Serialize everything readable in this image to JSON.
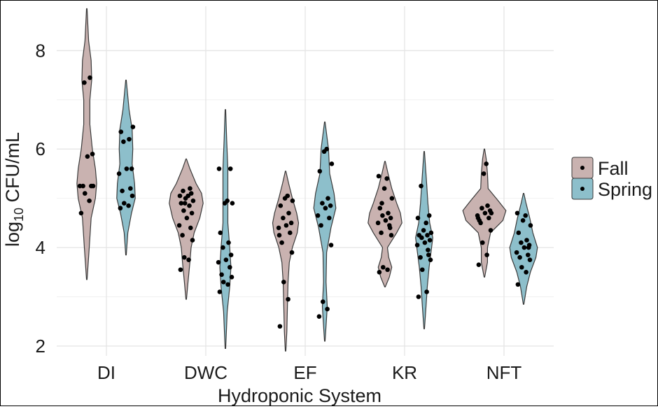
{
  "chart_data": {
    "type": "violin",
    "title": "",
    "xlabel": "Hydroponic System",
    "ylabel_main": "log",
    "ylabel_sub": "10",
    "ylabel_rest": " CFU/mL",
    "ylim": [
      1.8,
      8.9
    ],
    "yticks": [
      2,
      4,
      6,
      8
    ],
    "grid": true,
    "legend_position": "right",
    "categories": [
      "DI",
      "DWC",
      "EF",
      "KR",
      "NFT"
    ],
    "series": [
      {
        "name": "Fall",
        "color": "#c9b2b0",
        "groups": [
          {
            "min": 3.35,
            "max": 8.85,
            "density": [
              [
                3.35,
                0.01
              ],
              [
                4.0,
                0.08
              ],
              [
                4.6,
                0.14
              ],
              [
                5.0,
                0.28
              ],
              [
                5.3,
                0.32
              ],
              [
                5.6,
                0.28
              ],
              [
                6.0,
                0.18
              ],
              [
                6.5,
                0.1
              ],
              [
                7.0,
                0.1
              ],
              [
                7.4,
                0.16
              ],
              [
                7.8,
                0.14
              ],
              [
                8.2,
                0.06
              ],
              [
                8.85,
                0.01
              ]
            ],
            "points": [
              4.7,
              4.95,
              5.1,
              5.25,
              5.25,
              5.25,
              5.25,
              5.85,
              5.9,
              7.35,
              7.45
            ]
          },
          {
            "min": 2.95,
            "max": 5.8,
            "density": [
              [
                2.95,
                0.01
              ],
              [
                3.3,
                0.06
              ],
              [
                3.7,
                0.12
              ],
              [
                4.0,
                0.16
              ],
              [
                4.3,
                0.26
              ],
              [
                4.6,
                0.44
              ],
              [
                4.9,
                0.55
              ],
              [
                5.1,
                0.5
              ],
              [
                5.3,
                0.32
              ],
              [
                5.6,
                0.12
              ],
              [
                5.8,
                0.01
              ]
            ],
            "points": [
              3.55,
              3.75,
              3.8,
              4.15,
              4.25,
              4.4,
              4.45,
              4.6,
              4.7,
              4.75,
              4.85,
              4.9,
              4.95,
              5.0,
              5.05,
              5.05,
              5.1,
              5.15,
              5.2,
              4.9
            ]
          },
          {
            "min": 1.9,
            "max": 5.55,
            "density": [
              [
                1.9,
                0.01
              ],
              [
                2.3,
                0.04
              ],
              [
                2.8,
                0.06
              ],
              [
                3.3,
                0.08
              ],
              [
                3.7,
                0.12
              ],
              [
                4.0,
                0.22
              ],
              [
                4.3,
                0.38
              ],
              [
                4.5,
                0.42
              ],
              [
                4.7,
                0.36
              ],
              [
                5.0,
                0.22
              ],
              [
                5.3,
                0.1
              ],
              [
                5.55,
                0.01
              ]
            ],
            "points": [
              2.4,
              2.95,
              3.3,
              3.9,
              4.1,
              4.3,
              4.4,
              4.45,
              4.5,
              4.6,
              4.7,
              4.85,
              4.95,
              5.0,
              5.05,
              4.25
            ]
          },
          {
            "min": 3.2,
            "max": 5.75,
            "density": [
              [
                3.2,
                0.01
              ],
              [
                3.4,
                0.14
              ],
              [
                3.6,
                0.22
              ],
              [
                3.8,
                0.12
              ],
              [
                4.0,
                0.08
              ],
              [
                4.3,
                0.38
              ],
              [
                4.5,
                0.55
              ],
              [
                4.7,
                0.5
              ],
              [
                4.9,
                0.38
              ],
              [
                5.2,
                0.22
              ],
              [
                5.5,
                0.1
              ],
              [
                5.75,
                0.01
              ]
            ],
            "points": [
              3.5,
              3.55,
              3.6,
              4.25,
              4.3,
              4.45,
              4.5,
              4.55,
              4.6,
              4.65,
              4.7,
              4.8,
              5.0,
              5.2,
              5.4,
              5.45,
              4.4,
              4.9
            ]
          },
          {
            "min": 3.4,
            "max": 6.0,
            "density": [
              [
                3.4,
                0.01
              ],
              [
                3.7,
                0.1
              ],
              [
                4.0,
                0.1
              ],
              [
                4.3,
                0.2
              ],
              [
                4.55,
                0.6
              ],
              [
                4.75,
                0.7
              ],
              [
                4.95,
                0.45
              ],
              [
                5.2,
                0.12
              ],
              [
                5.5,
                0.1
              ],
              [
                5.8,
                0.06
              ],
              [
                6.0,
                0.01
              ]
            ],
            "points": [
              3.65,
              3.85,
              4.1,
              4.35,
              4.5,
              4.6,
              4.65,
              4.7,
              4.75,
              4.8,
              4.85,
              4.55,
              4.7,
              5.5,
              5.7,
              4.6
            ]
          }
        ]
      },
      {
        "name": "Spring",
        "color": "#8dbfcb",
        "groups": [
          {
            "min": 3.85,
            "max": 7.4,
            "density": [
              [
                3.85,
                0.01
              ],
              [
                4.3,
                0.06
              ],
              [
                4.7,
                0.18
              ],
              [
                5.0,
                0.3
              ],
              [
                5.3,
                0.28
              ],
              [
                5.7,
                0.2
              ],
              [
                6.0,
                0.22
              ],
              [
                6.4,
                0.2
              ],
              [
                6.8,
                0.1
              ],
              [
                7.4,
                0.01
              ]
            ],
            "points": [
              4.8,
              4.85,
              4.9,
              5.05,
              5.15,
              5.2,
              5.5,
              5.6,
              5.6,
              6.15,
              6.2,
              6.35,
              6.45
            ]
          },
          {
            "min": 1.95,
            "max": 6.8,
            "density": [
              [
                1.95,
                0.01
              ],
              [
                2.7,
                0.06
              ],
              [
                3.2,
                0.14
              ],
              [
                3.6,
                0.18
              ],
              [
                4.0,
                0.14
              ],
              [
                4.5,
                0.08
              ],
              [
                5.0,
                0.08
              ],
              [
                5.6,
                0.08
              ],
              [
                6.2,
                0.04
              ],
              [
                6.8,
                0.01
              ]
            ],
            "points": [
              3.1,
              3.25,
              3.3,
              3.4,
              3.45,
              3.6,
              3.7,
              3.75,
              3.85,
              4.0,
              4.1,
              4.3,
              4.9,
              4.9,
              4.95,
              5.6,
              5.6
            ]
          },
          {
            "min": 2.1,
            "max": 6.55,
            "density": [
              [
                2.1,
                0.01
              ],
              [
                2.5,
                0.05
              ],
              [
                2.8,
                0.08
              ],
              [
                3.3,
                0.04
              ],
              [
                3.9,
                0.06
              ],
              [
                4.4,
                0.2
              ],
              [
                4.8,
                0.36
              ],
              [
                5.1,
                0.3
              ],
              [
                5.5,
                0.16
              ],
              [
                6.0,
                0.12
              ],
              [
                6.55,
                0.01
              ]
            ],
            "points": [
              2.6,
              2.75,
              2.9,
              4.05,
              4.45,
              4.6,
              4.65,
              4.8,
              4.85,
              4.9,
              5.0,
              5.55,
              5.7,
              5.95,
              6.0
            ]
          },
          {
            "min": 2.35,
            "max": 5.95,
            "density": [
              [
                2.35,
                0.01
              ],
              [
                2.8,
                0.06
              ],
              [
                3.2,
                0.1
              ],
              [
                3.6,
                0.16
              ],
              [
                3.9,
                0.22
              ],
              [
                4.2,
                0.28
              ],
              [
                4.5,
                0.18
              ],
              [
                4.9,
                0.12
              ],
              [
                5.3,
                0.08
              ],
              [
                5.95,
                0.01
              ]
            ],
            "points": [
              3.0,
              3.1,
              3.55,
              3.75,
              3.8,
              3.85,
              4.05,
              4.1,
              4.15,
              4.2,
              4.25,
              4.25,
              4.3,
              4.35,
              4.5,
              4.6,
              4.65,
              5.25,
              3.95
            ]
          },
          {
            "min": 2.85,
            "max": 5.1,
            "density": [
              [
                2.85,
                0.01
              ],
              [
                3.2,
                0.1
              ],
              [
                3.5,
                0.22
              ],
              [
                3.8,
                0.4
              ],
              [
                4.0,
                0.45
              ],
              [
                4.3,
                0.3
              ],
              [
                4.6,
                0.2
              ],
              [
                4.9,
                0.08
              ],
              [
                5.1,
                0.01
              ]
            ],
            "points": [
              3.25,
              3.5,
              3.6,
              3.75,
              3.8,
              3.85,
              3.9,
              4.0,
              4.05,
              4.1,
              4.15,
              4.3,
              4.45,
              4.55,
              4.65,
              4.7,
              4.0
            ]
          }
        ]
      }
    ]
  }
}
